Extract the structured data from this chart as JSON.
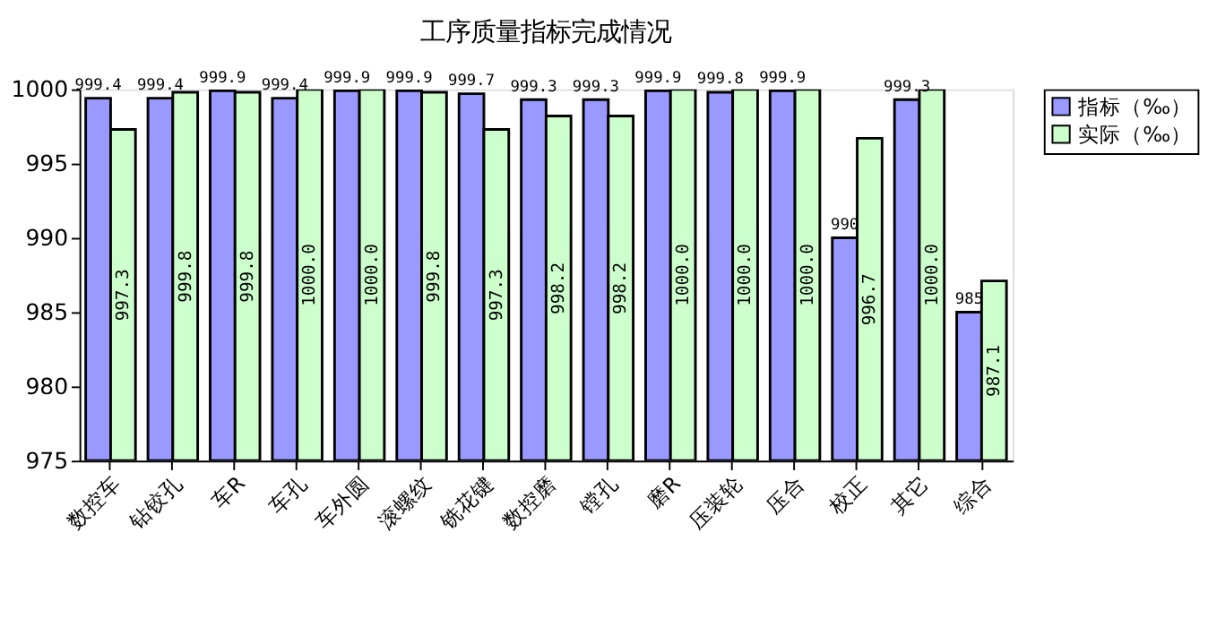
{
  "chart_data": {
    "type": "bar",
    "title": "工序质量指标完成情况",
    "categories": [
      "数控车",
      "钻铰孔",
      "车R",
      "车孔",
      "车外圆",
      "滚螺纹",
      "铣花键",
      "数控磨",
      "镗孔",
      "磨R",
      "压装轮",
      "压合",
      "校正",
      "其它",
      "综合"
    ],
    "series": [
      {
        "name": "指标（‰）",
        "color": "#9999ff",
        "values": [
          999.4,
          999.4,
          999.9,
          999.4,
          999.9,
          999.9,
          999.7,
          999.3,
          999.3,
          999.9,
          999.8,
          999.9,
          990,
          999.3,
          985
        ],
        "value_labels": [
          "999.4",
          "999.4",
          "999.9",
          "999.4",
          "999.9",
          "999.9",
          "999.7",
          "999.3",
          "999.3",
          "999.9",
          "999.8",
          "999.9",
          "990",
          "999.3",
          "985"
        ]
      },
      {
        "name": "实际（‰）",
        "color": "#ccffcc",
        "values": [
          997.3,
          999.8,
          999.8,
          1000.0,
          1000.0,
          999.8,
          997.3,
          998.2,
          998.2,
          1000.0,
          1000.0,
          1000.0,
          996.7,
          1000.0,
          987.1
        ],
        "value_labels": [
          "997.3",
          "999.8",
          "999.8",
          "1000.0",
          "1000.0",
          "999.8",
          "997.3",
          "998.2",
          "998.2",
          "1000.0",
          "1000.0",
          "1000.0",
          "996.7",
          "1000.0",
          "987.1"
        ]
      }
    ],
    "ylim": [
      975,
      1000
    ],
    "yticks": [
      975,
      980,
      985,
      990,
      995,
      1000
    ],
    "grid": false,
    "legend": "top right"
  }
}
